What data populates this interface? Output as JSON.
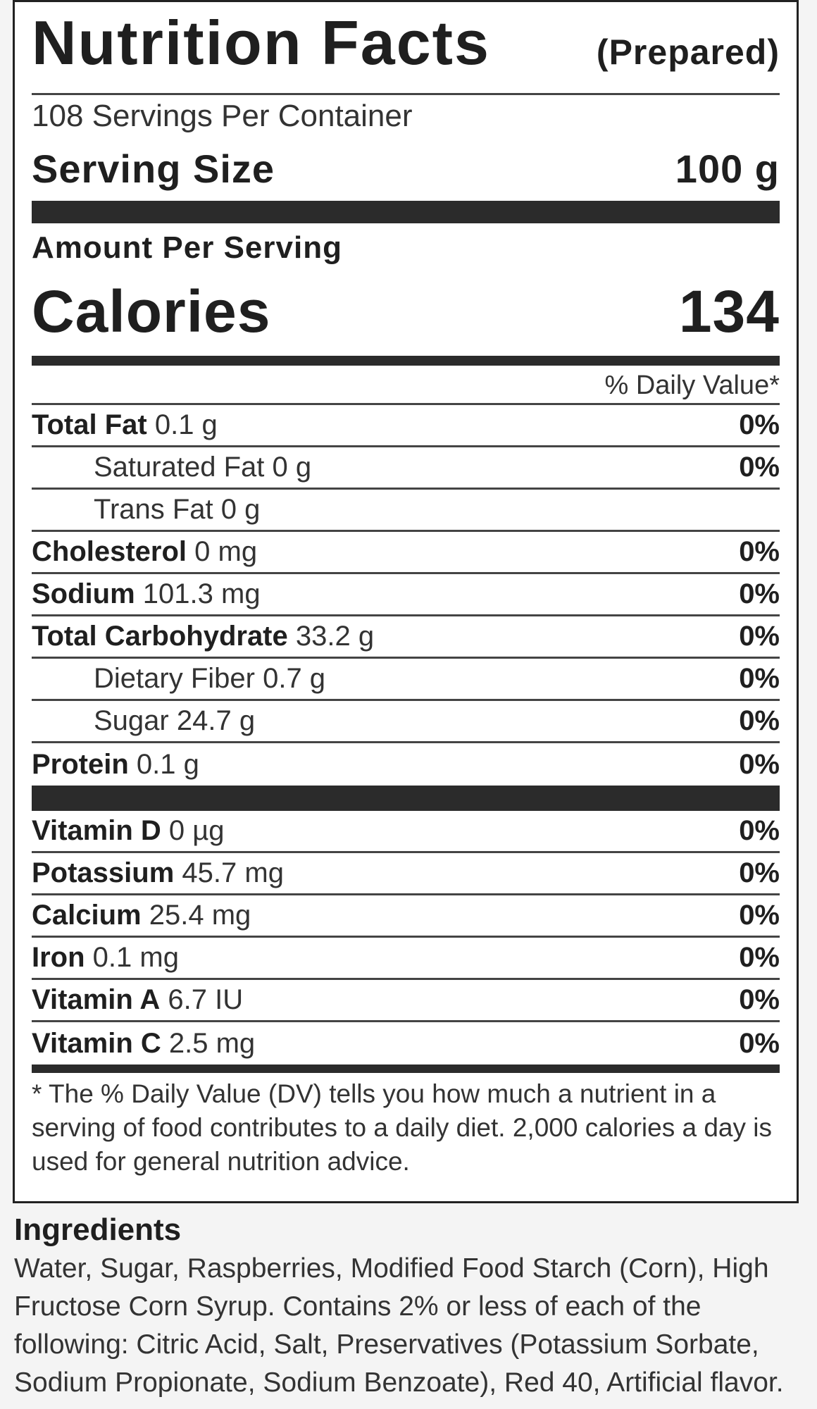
{
  "label": {
    "title": "Nutrition Facts",
    "qualifier": "(Prepared)",
    "servings_per_container": "108 Servings Per Container",
    "serving_size_label": "Serving Size",
    "serving_size_value": "100 g",
    "amount_per_serving": "Amount Per Serving",
    "calories_label": "Calories",
    "calories_value": "134",
    "daily_value_header": "% Daily Value*"
  },
  "nutrients": [
    {
      "name": "Total Fat",
      "amount": "0.1 g",
      "dv": "0%"
    },
    {
      "name": "Saturated Fat",
      "amount": "0 g",
      "dv": "0%"
    },
    {
      "name": "Trans Fat",
      "amount": "0 g",
      "dv": ""
    },
    {
      "name": "Cholesterol",
      "amount": "0 mg",
      "dv": "0%"
    },
    {
      "name": "Sodium",
      "amount": "101.3 mg",
      "dv": "0%"
    },
    {
      "name": "Total Carbohydrate",
      "amount": "33.2 g",
      "dv": "0%"
    },
    {
      "name": "Dietary Fiber",
      "amount": "0.7 g",
      "dv": "0%"
    },
    {
      "name": "Sugar",
      "amount": "24.7 g",
      "dv": "0%"
    },
    {
      "name": "Protein",
      "amount": "0.1 g",
      "dv": "0%"
    }
  ],
  "vitamins": [
    {
      "name": "Vitamin D",
      "amount": "0 µg",
      "dv": "0%"
    },
    {
      "name": "Potassium",
      "amount": "45.7 mg",
      "dv": "0%"
    },
    {
      "name": "Calcium",
      "amount": "25.4 mg",
      "dv": "0%"
    },
    {
      "name": "Iron",
      "amount": "0.1 mg",
      "dv": "0%"
    },
    {
      "name": "Vitamin A",
      "amount": "6.7 IU",
      "dv": "0%"
    },
    {
      "name": "Vitamin C",
      "amount": "2.5 mg",
      "dv": "0%"
    }
  ],
  "footnote": "* The % Daily Value (DV) tells you how much a nutrient in a serving of food contributes to a daily diet. 2,000 calories a day is used for general nutrition advice.",
  "ingredients": {
    "title": "Ingredients",
    "text": "Water, Sugar, Raspberries, Modified Food Starch (Corn), High Fructose Corn Syrup. Contains 2% or less of each of the following: Citric Acid, Salt, Preservatives (Potassium Sorbate, Sodium Propionate, Sodium Benzoate), Red 40, Artificial flavor."
  }
}
